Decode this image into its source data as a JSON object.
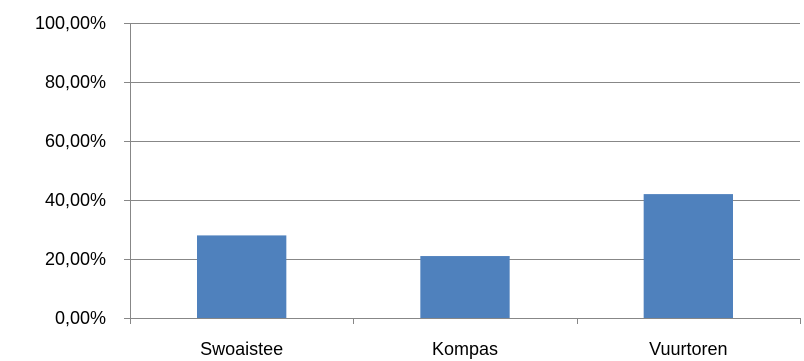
{
  "chart_data": {
    "type": "bar",
    "categories": [
      "Swoaistee",
      "Kompas",
      "Vuurtoren"
    ],
    "values": [
      28.0,
      21.0,
      42.0
    ],
    "y_tick_labels": [
      "0,00%",
      "20,00%",
      "40,00%",
      "60,00%",
      "80,00%",
      "100,00%"
    ],
    "y_ticks": [
      0,
      20,
      40,
      60,
      80,
      100
    ],
    "ylim": [
      0,
      100
    ],
    "title": "",
    "xlabel": "",
    "ylabel": "",
    "grid": true,
    "legend": "none",
    "colors": {
      "bar": "#4F81BD",
      "grid": "#878787",
      "axis": "#878787",
      "text": "#000000"
    }
  }
}
